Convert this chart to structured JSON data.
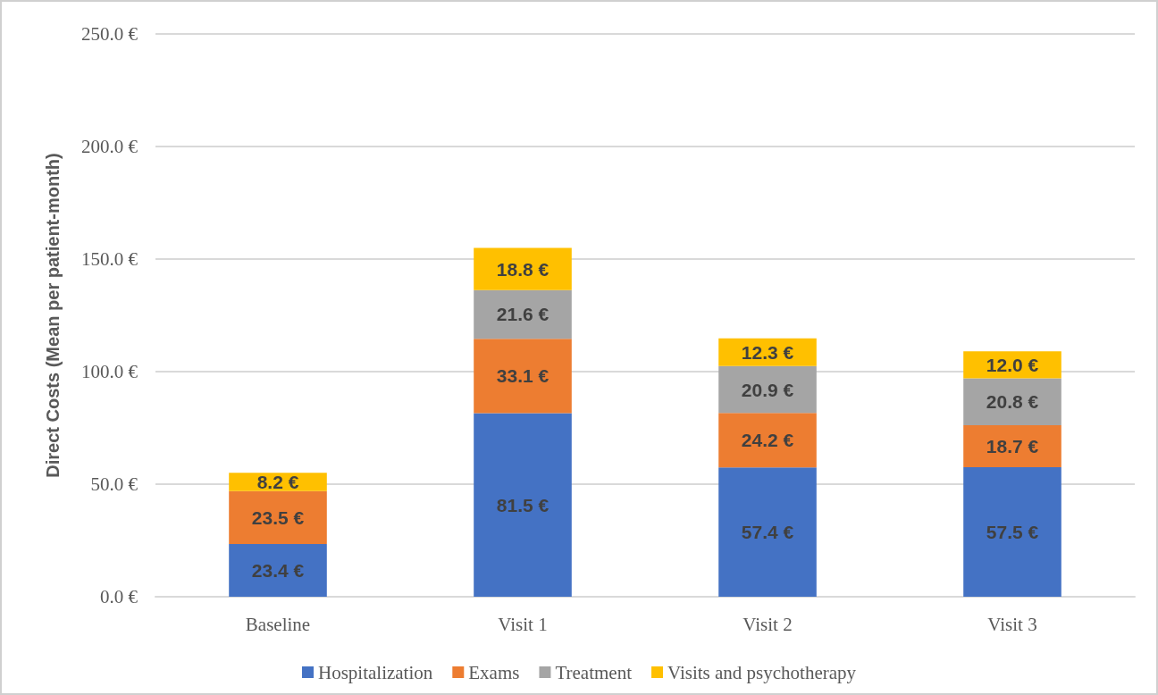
{
  "chart_data": {
    "type": "bar",
    "ylabel": "Direct Costs (Mean per patient-month)",
    "categories": [
      "Baseline",
      "Visit 1",
      "Visit 2",
      "Visit 3"
    ],
    "series": [
      {
        "name": "Hospitalization",
        "color": "#4472c4",
        "values": [
          23.4,
          81.5,
          57.4,
          57.5
        ],
        "value_labels": [
          "23.4 €",
          "81.5 €",
          "57.4 €",
          "57.5 €"
        ]
      },
      {
        "name": "Exams",
        "color": "#ed7d31",
        "values": [
          23.5,
          33.1,
          24.2,
          18.7
        ],
        "value_labels": [
          "23.5 €",
          "33.1 €",
          "24.2 €",
          "18.7 €"
        ]
      },
      {
        "name": "Treatment",
        "color": "#a5a5a5",
        "values": [
          null,
          21.6,
          20.9,
          20.8
        ],
        "value_labels": [
          null,
          "21.6 €",
          "20.9 €",
          "20.8 €"
        ]
      },
      {
        "name": "Visits and psychotherapy",
        "color": "#ffc000",
        "values": [
          8.2,
          18.8,
          12.3,
          12.0
        ],
        "value_labels": [
          "8.2 €",
          "18.8 €",
          "12.3 €",
          "12.0 €"
        ]
      }
    ],
    "stacked": true,
    "ylim": [
      0,
      250
    ],
    "yticks": [
      {
        "value": 0,
        "label": "0.0 €"
      },
      {
        "value": 50,
        "label": "50.0 €"
      },
      {
        "value": 100,
        "label": "100.0 €"
      },
      {
        "value": 150,
        "label": "150.0 €"
      },
      {
        "value": 200,
        "label": "200.0 €"
      },
      {
        "value": 250,
        "label": "250.0 €"
      }
    ],
    "grid": "y",
    "legend": "bottom"
  }
}
